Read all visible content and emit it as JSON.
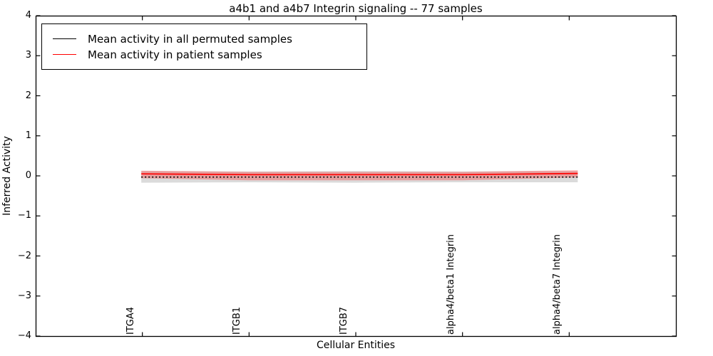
{
  "chart_data": {
    "type": "line",
    "title": "a4b1 and a4b7 Integrin signaling -- 77 samples",
    "xlabel": "Cellular Entities",
    "ylabel": "Inferred Activity",
    "xlim": [
      0,
      6
    ],
    "ylim": [
      -4,
      4
    ],
    "grid": false,
    "y_ticks": [
      {
        "v": 4,
        "label": "4"
      },
      {
        "v": 3,
        "label": "3"
      },
      {
        "v": 2,
        "label": "2"
      },
      {
        "v": 1,
        "label": "1"
      },
      {
        "v": 0,
        "label": "0"
      },
      {
        "v": -1,
        "label": "−1"
      },
      {
        "v": -2,
        "label": "−2"
      },
      {
        "v": -3,
        "label": "−3"
      },
      {
        "v": -4,
        "label": "−4"
      }
    ],
    "x_ticks": [
      {
        "pos": 1,
        "label": "ITGA4"
      },
      {
        "pos": 2,
        "label": "ITGB1"
      },
      {
        "pos": 3,
        "label": "ITGB7"
      },
      {
        "pos": 4,
        "label": "alpha4/beta1 Integrin"
      },
      {
        "pos": 5,
        "label": "alpha4/beta7 Integrin"
      }
    ],
    "series": [
      {
        "name": "Mean activity in all permuted samples",
        "color": "#000000",
        "line_style": "dotted",
        "x": [
          0.99,
          2,
          3,
          4,
          5.08
        ],
        "values": [
          -0.03,
          -0.03,
          -0.03,
          -0.03,
          -0.03
        ],
        "band": {
          "upper": [
            0.12,
            0.11,
            0.12,
            0.11,
            0.12
          ],
          "lower": [
            -0.17,
            -0.16,
            -0.17,
            -0.16,
            -0.16
          ],
          "color": "#999999",
          "opacity": 0.35
        }
      },
      {
        "name": "Mean activity in patient samples",
        "color": "#ff0000",
        "line_style": "solid",
        "x": [
          0.99,
          2,
          3,
          4,
          5.08
        ],
        "values": [
          0.05,
          0.03,
          0.03,
          0.03,
          0.06
        ],
        "band": {
          "upper": [
            0.13,
            0.1,
            0.1,
            0.1,
            0.14
          ],
          "lower": [
            -0.06,
            -0.11,
            -0.11,
            -0.11,
            -0.04
          ],
          "color": "#ff0000",
          "opacity": 0.28
        }
      }
    ],
    "legend": {
      "position": "upper-left",
      "entries": [
        {
          "label": "Mean activity in all permuted samples",
          "color": "#000000"
        },
        {
          "label": "Mean activity in patient samples",
          "color": "#ff0000"
        }
      ]
    }
  }
}
